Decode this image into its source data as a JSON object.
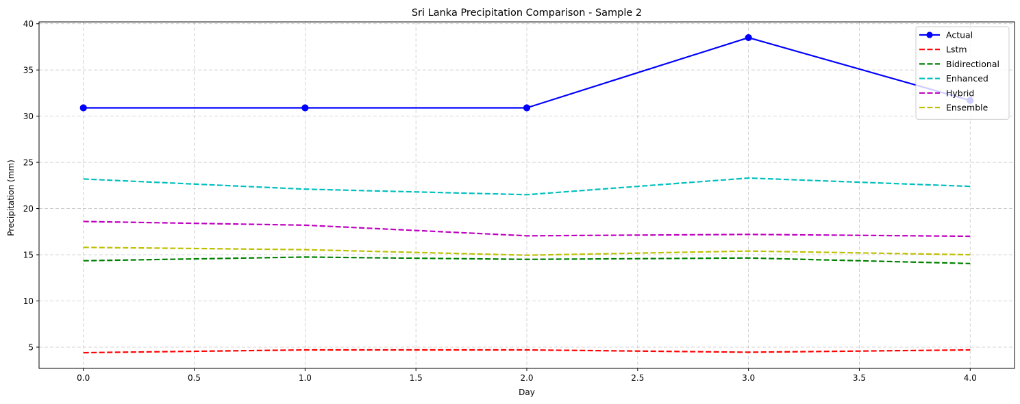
{
  "chart_data": {
    "type": "line",
    "title": "Sri Lanka Precipitation Comparison - Sample 2",
    "xlabel": "Day",
    "ylabel": "Precipitation (mm)",
    "x": [
      0,
      1,
      2,
      3,
      4
    ],
    "xlim": [
      -0.2,
      4.2
    ],
    "ylim": [
      2.7,
      40.2
    ],
    "xticks": [
      0.0,
      0.5,
      1.0,
      1.5,
      2.0,
      2.5,
      3.0,
      3.5,
      4.0
    ],
    "xtick_labels": [
      "0.0",
      "0.5",
      "1.0",
      "1.5",
      "2.0",
      "2.5",
      "3.0",
      "3.5",
      "4.0"
    ],
    "yticks": [
      5,
      10,
      15,
      20,
      25,
      30,
      35,
      40
    ],
    "ytick_labels": [
      "5",
      "10",
      "15",
      "20",
      "25",
      "30",
      "35",
      "40"
    ],
    "grid": true,
    "legend_position": "top-right",
    "series": [
      {
        "name": "Actual",
        "values": [
          30.9,
          30.9,
          30.9,
          38.5,
          31.7
        ],
        "color": "#0000ff",
        "style": "solid",
        "marker": "circle"
      },
      {
        "name": "Lstm",
        "values": [
          4.4,
          4.7,
          4.7,
          4.45,
          4.7
        ],
        "color": "#ff0000",
        "style": "dashed",
        "marker": "none"
      },
      {
        "name": "Bidirectional",
        "values": [
          14.35,
          14.75,
          14.5,
          14.65,
          14.05
        ],
        "color": "#008000",
        "style": "dashed",
        "marker": "none"
      },
      {
        "name": "Enhanced",
        "values": [
          23.2,
          22.1,
          21.5,
          23.3,
          22.4
        ],
        "color": "#00bfbf",
        "style": "dashed",
        "marker": "none"
      },
      {
        "name": "Hybrid",
        "values": [
          18.6,
          18.2,
          17.05,
          17.2,
          17.0
        ],
        "color": "#bf00bf",
        "style": "dashed",
        "marker": "none"
      },
      {
        "name": "Ensemble",
        "values": [
          15.8,
          15.55,
          14.95,
          15.4,
          15.0
        ],
        "color": "#bfbf00",
        "style": "dashed",
        "marker": "none"
      }
    ]
  }
}
